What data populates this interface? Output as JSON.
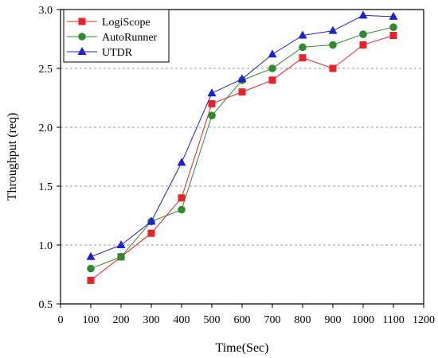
{
  "chart_data": {
    "type": "line",
    "title": "",
    "xlabel": "Time(Sec)",
    "ylabel": "Throughput (req)",
    "xlim": [
      0,
      1200
    ],
    "ylim": [
      0.5,
      3.0
    ],
    "xticks": [
      0,
      100,
      200,
      300,
      400,
      500,
      600,
      700,
      800,
      900,
      1000,
      1100,
      1200
    ],
    "yticks": [
      0.5,
      1.0,
      1.5,
      2.0,
      2.5,
      3.0
    ],
    "ytick_labels": [
      "0.5",
      "1.0",
      "1.5",
      "2.0",
      "2.5",
      "3.0"
    ],
    "grid": "horizontal-dashed",
    "legend_position": "top-left",
    "x": [
      100,
      200,
      300,
      400,
      500,
      600,
      700,
      800,
      900,
      1000,
      1100
    ],
    "series": [
      {
        "name": "LogiScope",
        "color": "#e8222a",
        "marker": "square",
        "values": [
          0.7,
          0.9,
          1.1,
          1.4,
          2.2,
          2.3,
          2.4,
          2.59,
          2.5,
          2.7,
          2.78
        ]
      },
      {
        "name": "AutoRunner",
        "color": "#2e8b2e",
        "marker": "circle",
        "values": [
          0.8,
          0.9,
          1.2,
          1.3,
          2.1,
          2.4,
          2.5,
          2.68,
          2.7,
          2.79,
          2.85
        ]
      },
      {
        "name": "UTDR",
        "color": "#1f1fd6",
        "marker": "triangle",
        "values": [
          0.9,
          1.0,
          1.2,
          1.7,
          2.29,
          2.41,
          2.62,
          2.78,
          2.82,
          2.95,
          2.94
        ]
      }
    ]
  }
}
